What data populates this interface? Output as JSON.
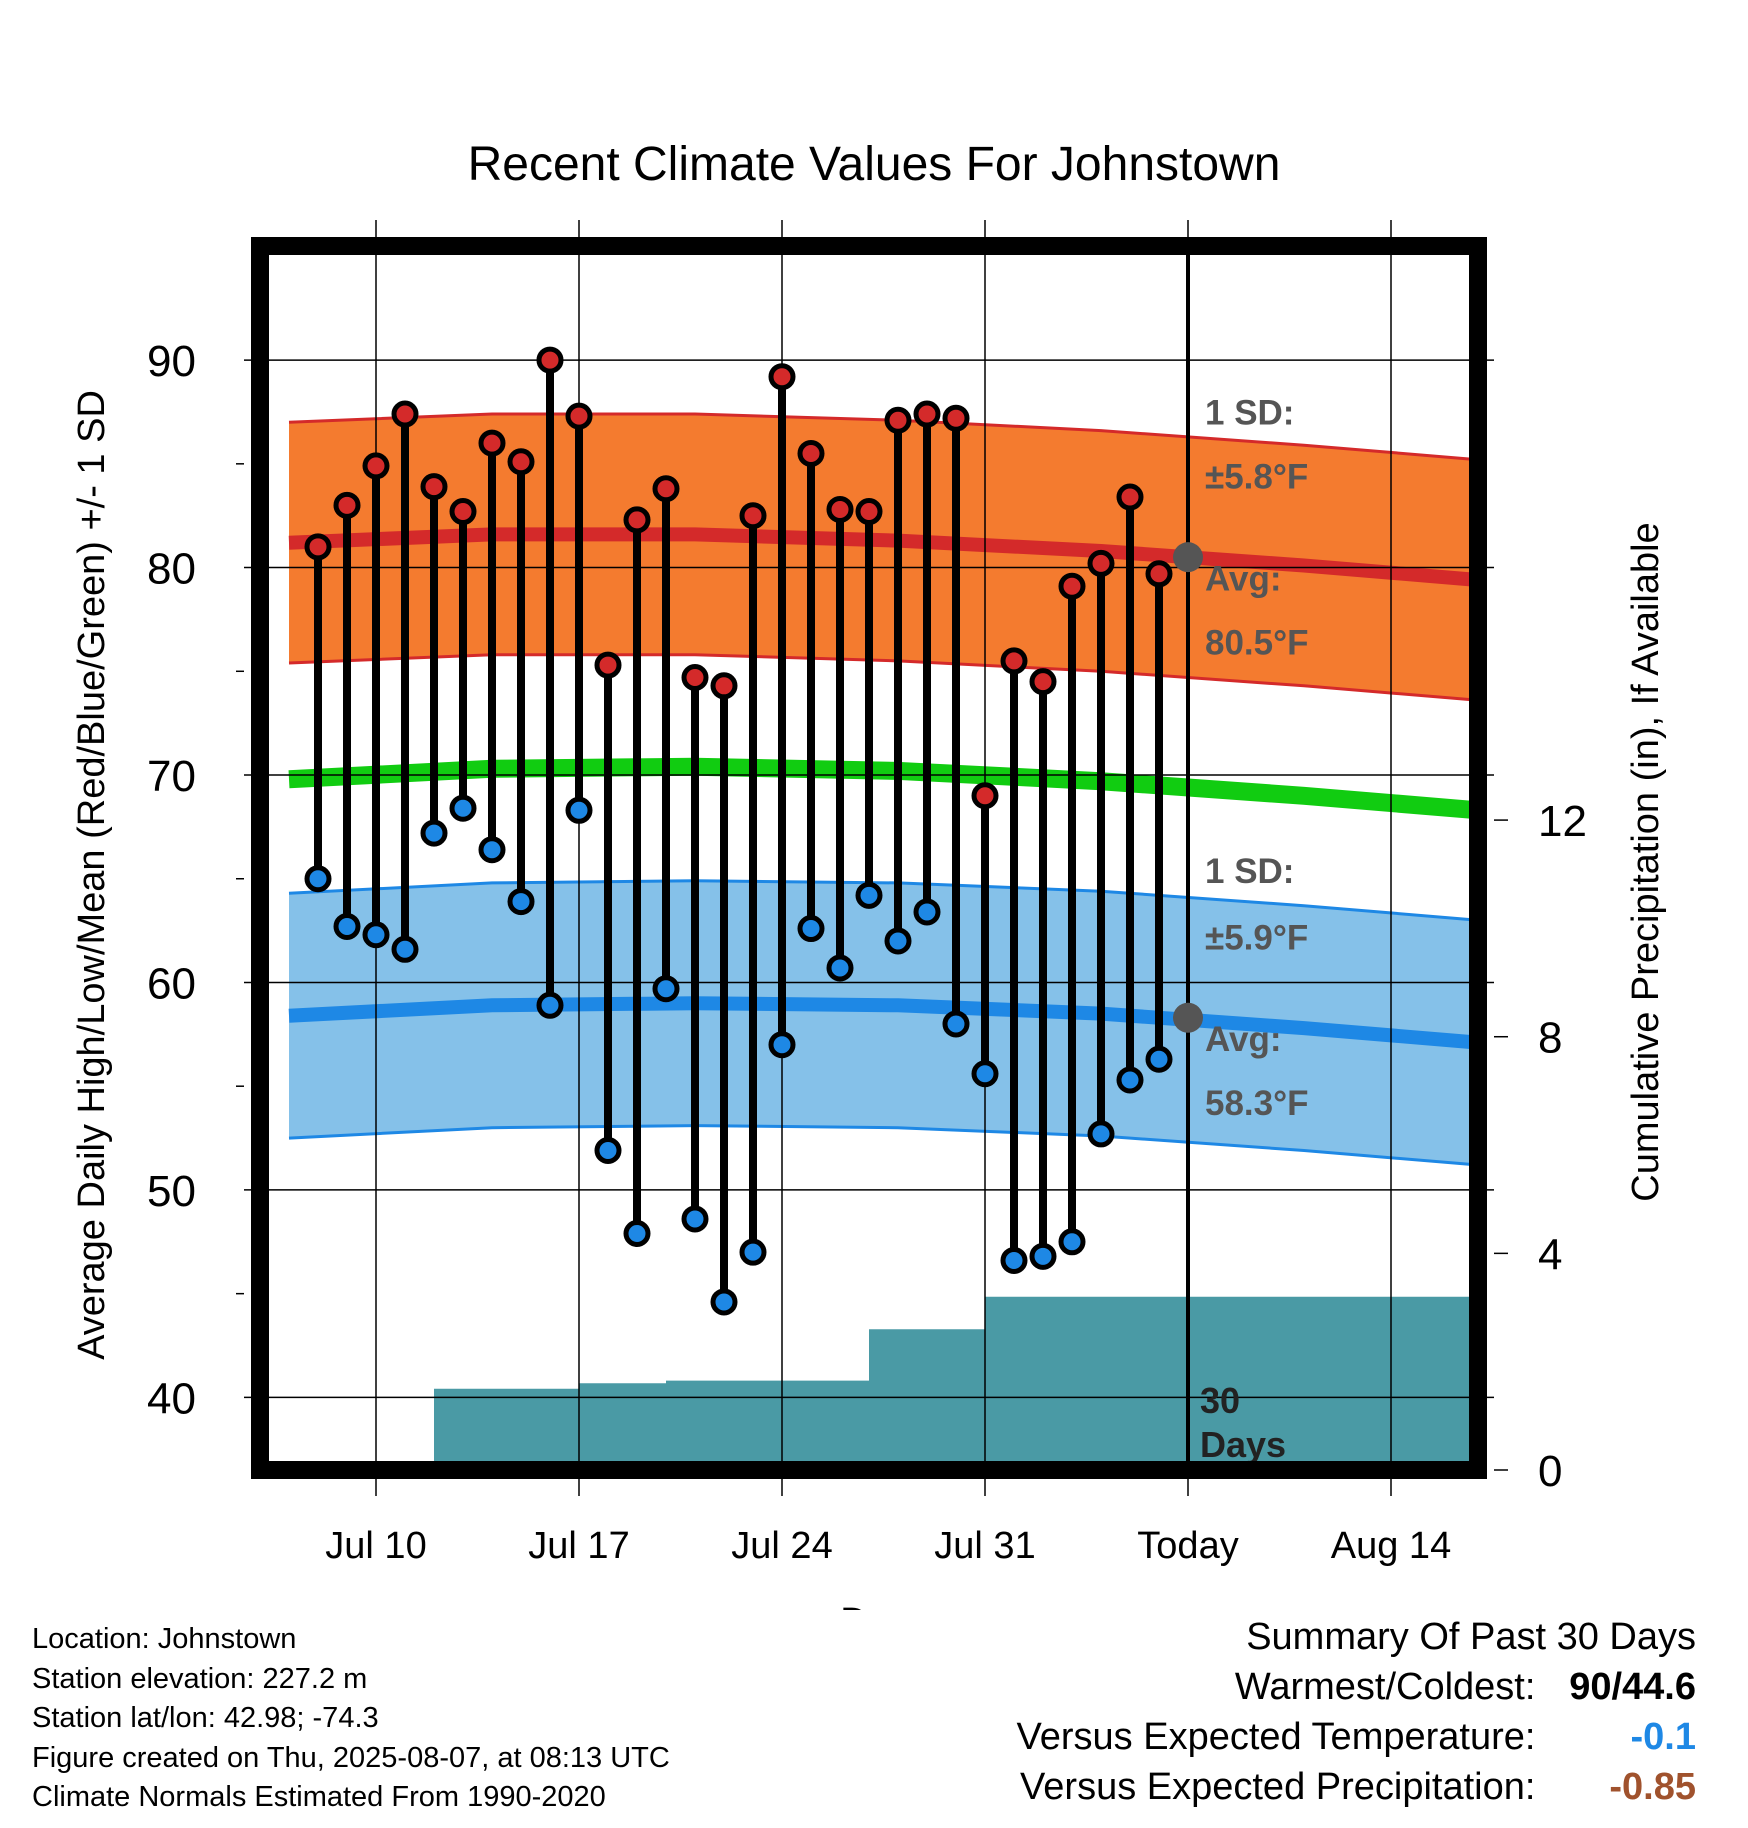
{
  "chart_data": {
    "type": "line",
    "title": "Recent Climate Values For Johnstown",
    "xlabel": "Day",
    "ylabel": "Average Daily High/Low/Mean (Red/Blue/Green) +/- 1 SD",
    "y2label": "Cumulative Precipitation (in), If Available",
    "x_tick_labels": [
      "Jul 10",
      "Jul 17",
      "Jul 24",
      "Jul 31",
      "Today",
      "Aug 14"
    ],
    "x_tick_dates": [
      "2025-07-10",
      "2025-07-17",
      "2025-07-24",
      "2025-07-31",
      "2025-08-07",
      "2025-08-14"
    ],
    "y_ticks": [
      40,
      50,
      60,
      70,
      80,
      90
    ],
    "y2_ticks": [
      0,
      4,
      8,
      12
    ],
    "ylim": [
      36.5,
      95.5
    ],
    "y2lim": [
      0,
      22.6
    ],
    "xlim": [
      "2025-07-06",
      "2025-08-17"
    ],
    "grid": true,
    "today_date": "2025-08-07",
    "today_text": "30\nDays",
    "normals": {
      "dates": [
        "2025-07-07",
        "2025-07-14",
        "2025-07-21",
        "2025-07-28",
        "2025-08-04",
        "2025-08-11",
        "2025-08-17"
      ],
      "high_avg": [
        81.2,
        81.6,
        81.6,
        81.3,
        80.8,
        80.1,
        79.4
      ],
      "high_sd": 5.8,
      "low_avg": [
        58.4,
        58.9,
        59.0,
        58.9,
        58.5,
        57.8,
        57.1
      ],
      "low_sd": 5.9,
      "mean_avg": [
        69.8,
        70.3,
        70.4,
        70.2,
        69.7,
        69.0,
        68.3
      ]
    },
    "high_annotation": {
      "sd_label": "1 SD:",
      "sd_value": "±5.8°F",
      "avg_label": "Avg:",
      "avg_value": "80.5°F",
      "avg": 80.5
    },
    "low_annotation": {
      "sd_label": "1 SD:",
      "sd_value": "±5.9°F",
      "avg_label": "Avg:",
      "avg_value": "58.3°F",
      "avg": 58.3
    },
    "series": [
      {
        "name": "Daily High",
        "color": "#d42a2a",
        "x": [
          "2025-07-08",
          "2025-07-09",
          "2025-07-10",
          "2025-07-11",
          "2025-07-12",
          "2025-07-13",
          "2025-07-14",
          "2025-07-15",
          "2025-07-16",
          "2025-07-17",
          "2025-07-18",
          "2025-07-19",
          "2025-07-20",
          "2025-07-21",
          "2025-07-22",
          "2025-07-23",
          "2025-07-24",
          "2025-07-25",
          "2025-07-26",
          "2025-07-27",
          "2025-07-28",
          "2025-07-29",
          "2025-07-30",
          "2025-07-31",
          "2025-08-01",
          "2025-08-02",
          "2025-08-03",
          "2025-08-04",
          "2025-08-05",
          "2025-08-06"
        ],
        "values": [
          81.0,
          83.0,
          84.9,
          87.4,
          83.9,
          82.7,
          86.0,
          85.1,
          90.0,
          87.3,
          75.3,
          82.3,
          83.8,
          74.7,
          74.3,
          82.5,
          89.2,
          85.5,
          82.8,
          82.7,
          87.1,
          87.4,
          87.2,
          69.0,
          75.5,
          74.5,
          79.1,
          80.2,
          83.4,
          79.7
        ]
      },
      {
        "name": "Daily Low",
        "color": "#1e88e5",
        "x": [
          "2025-07-08",
          "2025-07-09",
          "2025-07-10",
          "2025-07-11",
          "2025-07-12",
          "2025-07-13",
          "2025-07-14",
          "2025-07-15",
          "2025-07-16",
          "2025-07-17",
          "2025-07-18",
          "2025-07-19",
          "2025-07-20",
          "2025-07-21",
          "2025-07-22",
          "2025-07-23",
          "2025-07-24",
          "2025-07-25",
          "2025-07-26",
          "2025-07-27",
          "2025-07-28",
          "2025-07-29",
          "2025-07-30",
          "2025-07-31",
          "2025-08-01",
          "2025-08-02",
          "2025-08-03",
          "2025-08-04",
          "2025-08-05",
          "2025-08-06"
        ],
        "values": [
          65.0,
          62.7,
          62.3,
          61.6,
          67.2,
          68.4,
          66.4,
          63.9,
          58.9,
          68.3,
          51.9,
          47.9,
          59.7,
          48.6,
          44.6,
          47.0,
          57.0,
          62.6,
          60.7,
          64.2,
          62.0,
          63.4,
          58.0,
          55.6,
          46.6,
          46.8,
          47.5,
          52.7,
          55.3,
          56.3
        ]
      },
      {
        "name": "Cumulative Precipitation",
        "color": "#4a9aa5",
        "x": [
          "2025-07-11",
          "2025-07-12",
          "2025-07-13",
          "2025-07-14",
          "2025-07-15",
          "2025-07-16",
          "2025-07-17",
          "2025-07-18",
          "2025-07-19",
          "2025-07-20",
          "2025-07-21",
          "2025-07-22",
          "2025-07-23",
          "2025-07-24",
          "2025-07-25",
          "2025-07-26",
          "2025-07-27",
          "2025-07-28",
          "2025-07-29",
          "2025-07-30",
          "2025-07-31",
          "2025-08-01",
          "2025-08-02",
          "2025-08-03",
          "2025-08-04",
          "2025-08-05",
          "2025-08-06",
          "2025-08-07",
          "2025-08-17"
        ],
        "values": [
          0.0,
          1.5,
          1.5,
          1.5,
          1.5,
          1.5,
          1.6,
          1.6,
          1.6,
          1.65,
          1.65,
          1.65,
          1.65,
          1.65,
          1.65,
          1.65,
          2.6,
          2.6,
          2.6,
          2.6,
          3.2,
          3.2,
          3.2,
          3.2,
          3.2,
          3.2,
          3.2,
          3.2,
          3.2
        ]
      }
    ]
  },
  "info": {
    "location": "Location: Johnstown",
    "elevation": "Station elevation: 227.2 m",
    "latlon": "Station lat/lon: 42.98; -74.3",
    "created": "Figure created on Thu, 2025-08-07, at 08:13 UTC",
    "normals": "Climate Normals Estimated From 1990-2020"
  },
  "summary": {
    "title": "Summary Of Past 30 Days",
    "warm_cold_label": "Warmest/Coldest:",
    "warm_cold_value": "90/44.6",
    "temp_label": "Versus Expected Temperature:",
    "temp_value": "-0.1",
    "temp_color": "#1e88e5",
    "precip_label": "Versus Expected Precipitation:",
    "precip_value": "-0.85",
    "precip_color": "#a0522d"
  }
}
